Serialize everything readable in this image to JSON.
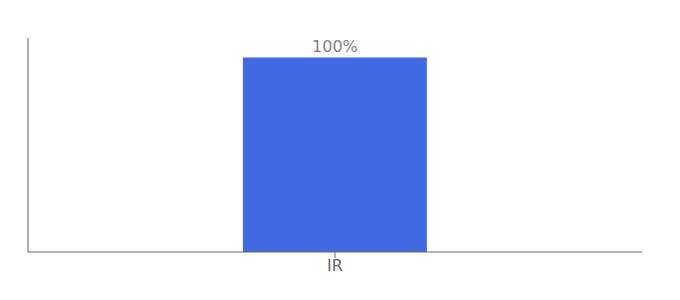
{
  "chart_data": {
    "type": "bar",
    "categories": [
      "IR"
    ],
    "values": [
      100
    ],
    "value_labels": [
      "100%"
    ],
    "color": "#4169e1",
    "ylim": [
      0,
      110
    ],
    "data_labels": true,
    "tick_labels": "x"
  }
}
